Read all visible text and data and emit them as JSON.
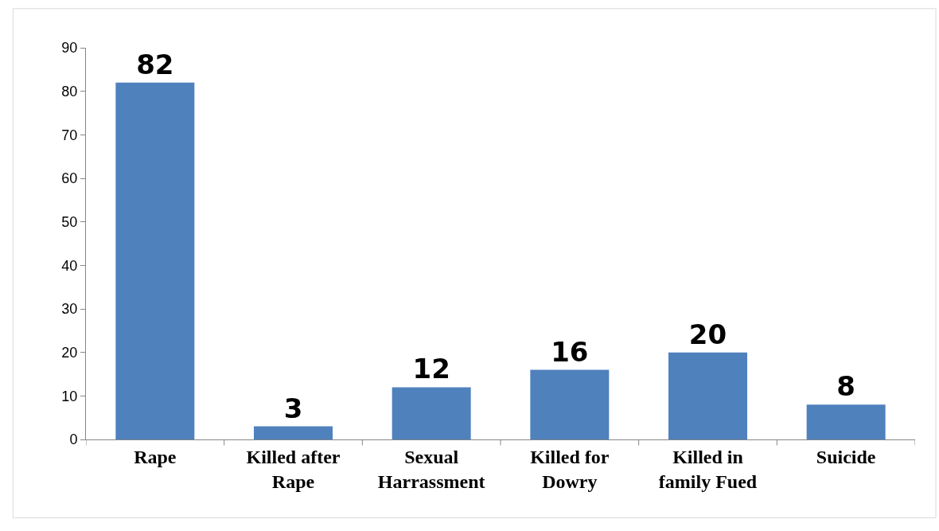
{
  "chart_data": {
    "type": "bar",
    "categories": [
      "Rape",
      "Killed after Rape",
      "Sexual Harrassment",
      "Killed for Dowry",
      "Killed in family Fued",
      "Suicide"
    ],
    "values": [
      82,
      3,
      12,
      16,
      20,
      8
    ],
    "color": "#4f81bd",
    "ylim": [
      0,
      90
    ],
    "yticks": [
      0,
      10,
      20,
      30,
      40,
      50,
      60,
      70,
      80,
      90
    ],
    "data_labels": true,
    "legend": false
  }
}
